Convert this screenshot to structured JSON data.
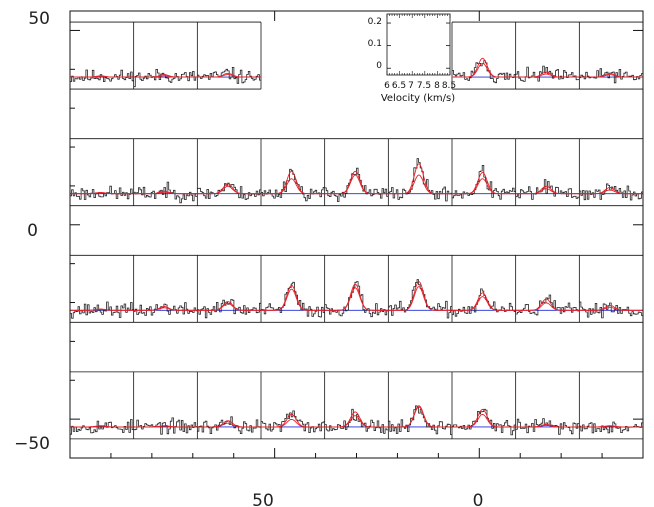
{
  "chart_data": {
    "type": "line",
    "title": "",
    "description_free": true,
    "outer_axes": {
      "x_ticks": [
        {
          "label": "50",
          "value": 50
        },
        {
          "label": "0",
          "value": 0
        }
      ],
      "y_ticks": [
        {
          "label": "50",
          "value": 50
        },
        {
          "label": "0",
          "value": 0
        },
        {
          "label": "−50",
          "value": -50
        }
      ],
      "xlim": [
        100,
        -40
      ],
      "ylim": [
        -60,
        55
      ]
    },
    "grid_rows": [
      {
        "y_offset": 38,
        "columns": [
          0,
          1,
          2,
          6,
          7,
          8
        ],
        "amplitudes": [
          0.005,
          0.01,
          0.015,
          0.075,
          0.02,
          0.015
        ],
        "gauss2": [
          0.003,
          0.005,
          0.01,
          0.055,
          0.012,
          0.01
        ],
        "noise_seed": 11
      },
      {
        "y_offset": 8,
        "columns": [
          0,
          1,
          2,
          3,
          4,
          5,
          6,
          7,
          8
        ],
        "amplitudes": [
          0.005,
          0.01,
          0.04,
          0.09,
          0.09,
          0.12,
          0.085,
          0.03,
          0.025
        ],
        "gauss2": [
          0.003,
          0.006,
          0.03,
          0.06,
          0.075,
          0.075,
          0.06,
          0.02,
          0.015
        ],
        "noise_seed": 23
      },
      {
        "y_offset": -22,
        "columns": [
          0,
          1,
          2,
          3,
          4,
          5,
          6,
          7,
          8
        ],
        "amplitudes": [
          0.005,
          0.015,
          0.035,
          0.1,
          0.105,
          0.115,
          0.07,
          0.045,
          0.02
        ],
        "gauss2": [
          0.003,
          0.01,
          0.028,
          0.085,
          0.09,
          0.095,
          0.055,
          0.03,
          0.012
        ],
        "noise_seed": 37
      },
      {
        "y_offset": -52,
        "columns": [
          0,
          1,
          2,
          3,
          4,
          5,
          6,
          7,
          8
        ],
        "amplitudes": [
          0.005,
          0.005,
          0.025,
          0.05,
          0.06,
          0.08,
          0.07,
          0.01,
          0.005
        ],
        "gauss2": [
          0.003,
          0.003,
          0.015,
          0.03,
          0.045,
          0.085,
          0.05,
          0.006,
          0.003
        ],
        "noise_seed": 53
      }
    ],
    "spectrum": {
      "velocity_range_kms": [
        6,
        8.5
      ],
      "line_center_kms": 7.2,
      "line_width_kms": 0.18,
      "intensity_range": [
        -0.03,
        0.24
      ]
    },
    "inset": {
      "xlabel": "Velocity (km/s)",
      "x_ticks": [
        "6",
        "6.5",
        "7",
        "7.5",
        "8",
        "8.5"
      ],
      "y_ticks": [
        "0",
        "0.1",
        "0.2"
      ],
      "y_tick_values": [
        0,
        0.1,
        0.2
      ],
      "xlim": [
        6,
        8.5
      ],
      "ylim": [
        -0.03,
        0.24
      ]
    },
    "series": [
      {
        "color": "#222222",
        "style": "histogram"
      },
      {
        "color": "#e8222a",
        "style": "model"
      },
      {
        "color": "#1e2bd6",
        "style": "baseline"
      }
    ]
  }
}
